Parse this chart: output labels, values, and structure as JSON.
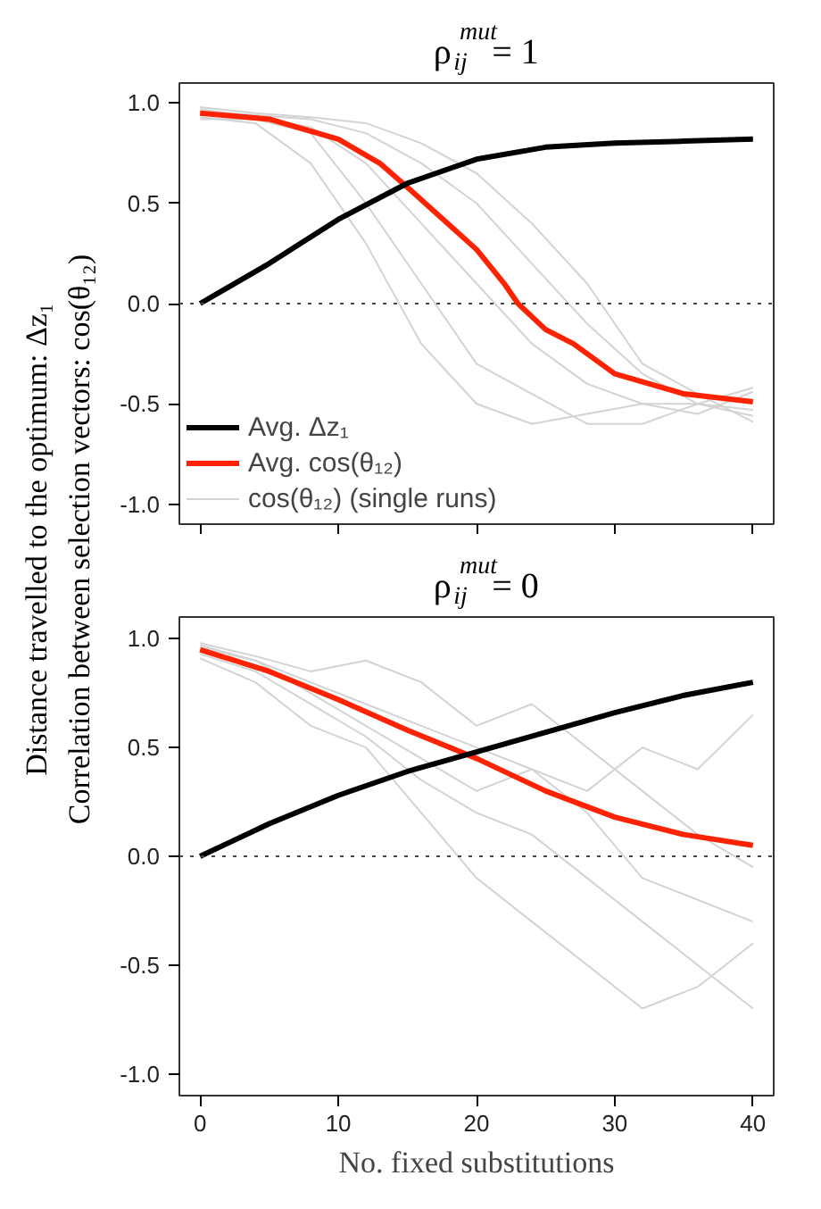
{
  "chart_data": [
    {
      "type": "line",
      "title": "ρ$^{mut}$$_{ij}$ = 1",
      "ylabel": "Distance travelled to the optimum: Δz₁\nCorrelation between selection vectors: cos(θ₁₂)",
      "x": [
        0,
        5,
        10,
        15,
        20,
        25,
        30,
        35,
        40
      ],
      "xlim": [
        -1.5,
        41.5
      ],
      "ylim": [
        -1.1,
        1.1
      ],
      "xticks": [
        {
          "value": 0,
          "label": null
        },
        {
          "value": 10,
          "label": null
        },
        {
          "value": 20,
          "label": null
        },
        {
          "value": 30,
          "label": null
        },
        {
          "value": 40,
          "label": null
        }
      ],
      "yticks": [
        {
          "value": -1,
          "label": "-1.0"
        },
        {
          "value": -0.5,
          "label": "-0.5"
        },
        {
          "value": 0,
          "label": "0.0"
        },
        {
          "value": 0.5,
          "label": "0.5"
        },
        {
          "value": 1,
          "label": "1.0"
        }
      ],
      "tick_labels": "y",
      "grid": false,
      "legend": "bottom left",
      "ref_lines": [
        {
          "axis": "y",
          "value": 0,
          "label": null,
          "line_style": "dotted",
          "color": "#444444"
        }
      ],
      "series": [
        {
          "name": "Avg. Δz₁",
          "color": "#000000",
          "values": [
            0,
            0.2,
            0.42,
            0.6,
            0.72,
            0.78,
            0.8,
            0.81,
            0.82
          ]
        },
        {
          "name": "Avg. cos(θ₁₂)",
          "color": "#ff2200",
          "x": [
            0,
            5,
            10,
            13,
            15,
            20,
            22,
            23,
            25,
            27,
            30,
            35,
            40
          ],
          "values": [
            0.95,
            0.92,
            0.82,
            0.7,
            0.58,
            0.27,
            0.1,
            0,
            -0.13,
            -0.2,
            -0.35,
            -0.45,
            -0.49
          ]
        },
        {
          "name": "cos(θ₁₂) (single runs)",
          "color": "#d3d3d3",
          "x": [
            0,
            4,
            8,
            12,
            16,
            20,
            24,
            28,
            32,
            36,
            40
          ],
          "values": [
            0.97,
            0.93,
            0.88,
            0.7,
            0.4,
            0.1,
            -0.2,
            -0.4,
            -0.5,
            -0.5,
            -0.53
          ]
        },
        {
          "color": "#d3d3d3",
          "x": [
            0,
            4,
            8,
            12,
            16,
            20,
            24,
            28,
            32,
            36,
            40
          ],
          "values": [
            0.96,
            0.94,
            0.92,
            0.85,
            0.7,
            0.5,
            0.2,
            -0.1,
            -0.35,
            -0.5,
            -0.56
          ]
        },
        {
          "color": "#d3d3d3",
          "x": [
            0,
            4,
            8,
            12,
            16,
            20,
            24,
            28,
            32,
            36,
            40
          ],
          "values": [
            0.93,
            0.9,
            0.7,
            0.3,
            -0.2,
            -0.5,
            -0.6,
            -0.55,
            -0.5,
            -0.55,
            -0.44
          ]
        },
        {
          "color": "#d3d3d3",
          "x": [
            0,
            4,
            8,
            12,
            16,
            20,
            24,
            28,
            32,
            36,
            40
          ],
          "values": [
            0.98,
            0.95,
            0.93,
            0.9,
            0.8,
            0.65,
            0.4,
            0.1,
            -0.3,
            -0.45,
            -0.59
          ]
        },
        {
          "color": "#d3d3d3",
          "x": [
            0,
            4,
            8,
            12,
            16,
            20,
            24,
            28,
            32,
            36,
            40
          ],
          "values": [
            0.92,
            0.92,
            0.85,
            0.5,
            0.1,
            -0.3,
            -0.45,
            -0.6,
            -0.6,
            -0.5,
            -0.42
          ]
        }
      ]
    },
    {
      "type": "line",
      "title": "ρ$^{mut}$$_{ij}$ = 0",
      "xlabel": "No. fixed substitutions",
      "x": [
        0,
        5,
        10,
        15,
        20,
        25,
        30,
        35,
        40
      ],
      "xlim": [
        -1.5,
        41.5
      ],
      "ylim": [
        -1.1,
        1.1
      ],
      "xticks": [
        0,
        10,
        20,
        30,
        40
      ],
      "yticks": [
        {
          "value": -1,
          "label": "-1.0"
        },
        {
          "value": -0.5,
          "label": "-0.5"
        },
        {
          "value": 0,
          "label": "0.0"
        },
        {
          "value": 0.5,
          "label": "0.5"
        },
        {
          "value": 1,
          "label": "1.0"
        }
      ],
      "grid": false,
      "ref_lines": [
        {
          "axis": "y",
          "value": 0,
          "label": null,
          "line_style": "dotted",
          "color": "#444444"
        }
      ],
      "series": [
        {
          "color": "#000000",
          "values": [
            0,
            0.15,
            0.28,
            0.39,
            0.48,
            0.57,
            0.66,
            0.74,
            0.8
          ]
        },
        {
          "color": "#ff2200",
          "values": [
            0.95,
            0.85,
            0.72,
            0.58,
            0.45,
            0.3,
            0.18,
            0.1,
            0.05
          ]
        },
        {
          "color": "#d3d3d3",
          "x": [
            0,
            4,
            8,
            12,
            16,
            20,
            24,
            28,
            32,
            36,
            40
          ],
          "values": [
            0.97,
            0.9,
            0.8,
            0.7,
            0.6,
            0.5,
            0.4,
            0.3,
            0.5,
            0.4,
            0.65
          ]
        },
        {
          "color": "#d3d3d3",
          "x": [
            0,
            4,
            8,
            12,
            16,
            20,
            24,
            28,
            32,
            36,
            40
          ],
          "values": [
            0.93,
            0.85,
            0.7,
            0.55,
            0.35,
            0.2,
            0.1,
            -0.1,
            -0.3,
            -0.5,
            -0.7
          ]
        },
        {
          "color": "#d3d3d3",
          "x": [
            0,
            4,
            8,
            12,
            16,
            20,
            24,
            28,
            32,
            36,
            40
          ],
          "values": [
            0.98,
            0.92,
            0.85,
            0.9,
            0.8,
            0.6,
            0.7,
            0.5,
            0.3,
            0.1,
            -0.05
          ]
        },
        {
          "color": "#d3d3d3",
          "x": [
            0,
            4,
            8,
            12,
            16,
            20,
            24,
            28,
            32,
            36,
            40
          ],
          "values": [
            0.91,
            0.8,
            0.6,
            0.5,
            0.2,
            -0.1,
            -0.3,
            -0.5,
            -0.7,
            -0.6,
            -0.4
          ]
        },
        {
          "color": "#d3d3d3",
          "x": [
            0,
            4,
            8,
            12,
            16,
            20,
            24,
            28,
            32,
            36,
            40
          ],
          "values": [
            0.96,
            0.9,
            0.75,
            0.6,
            0.45,
            0.3,
            0.4,
            0.2,
            -0.1,
            -0.2,
            -0.3
          ]
        }
      ]
    }
  ]
}
